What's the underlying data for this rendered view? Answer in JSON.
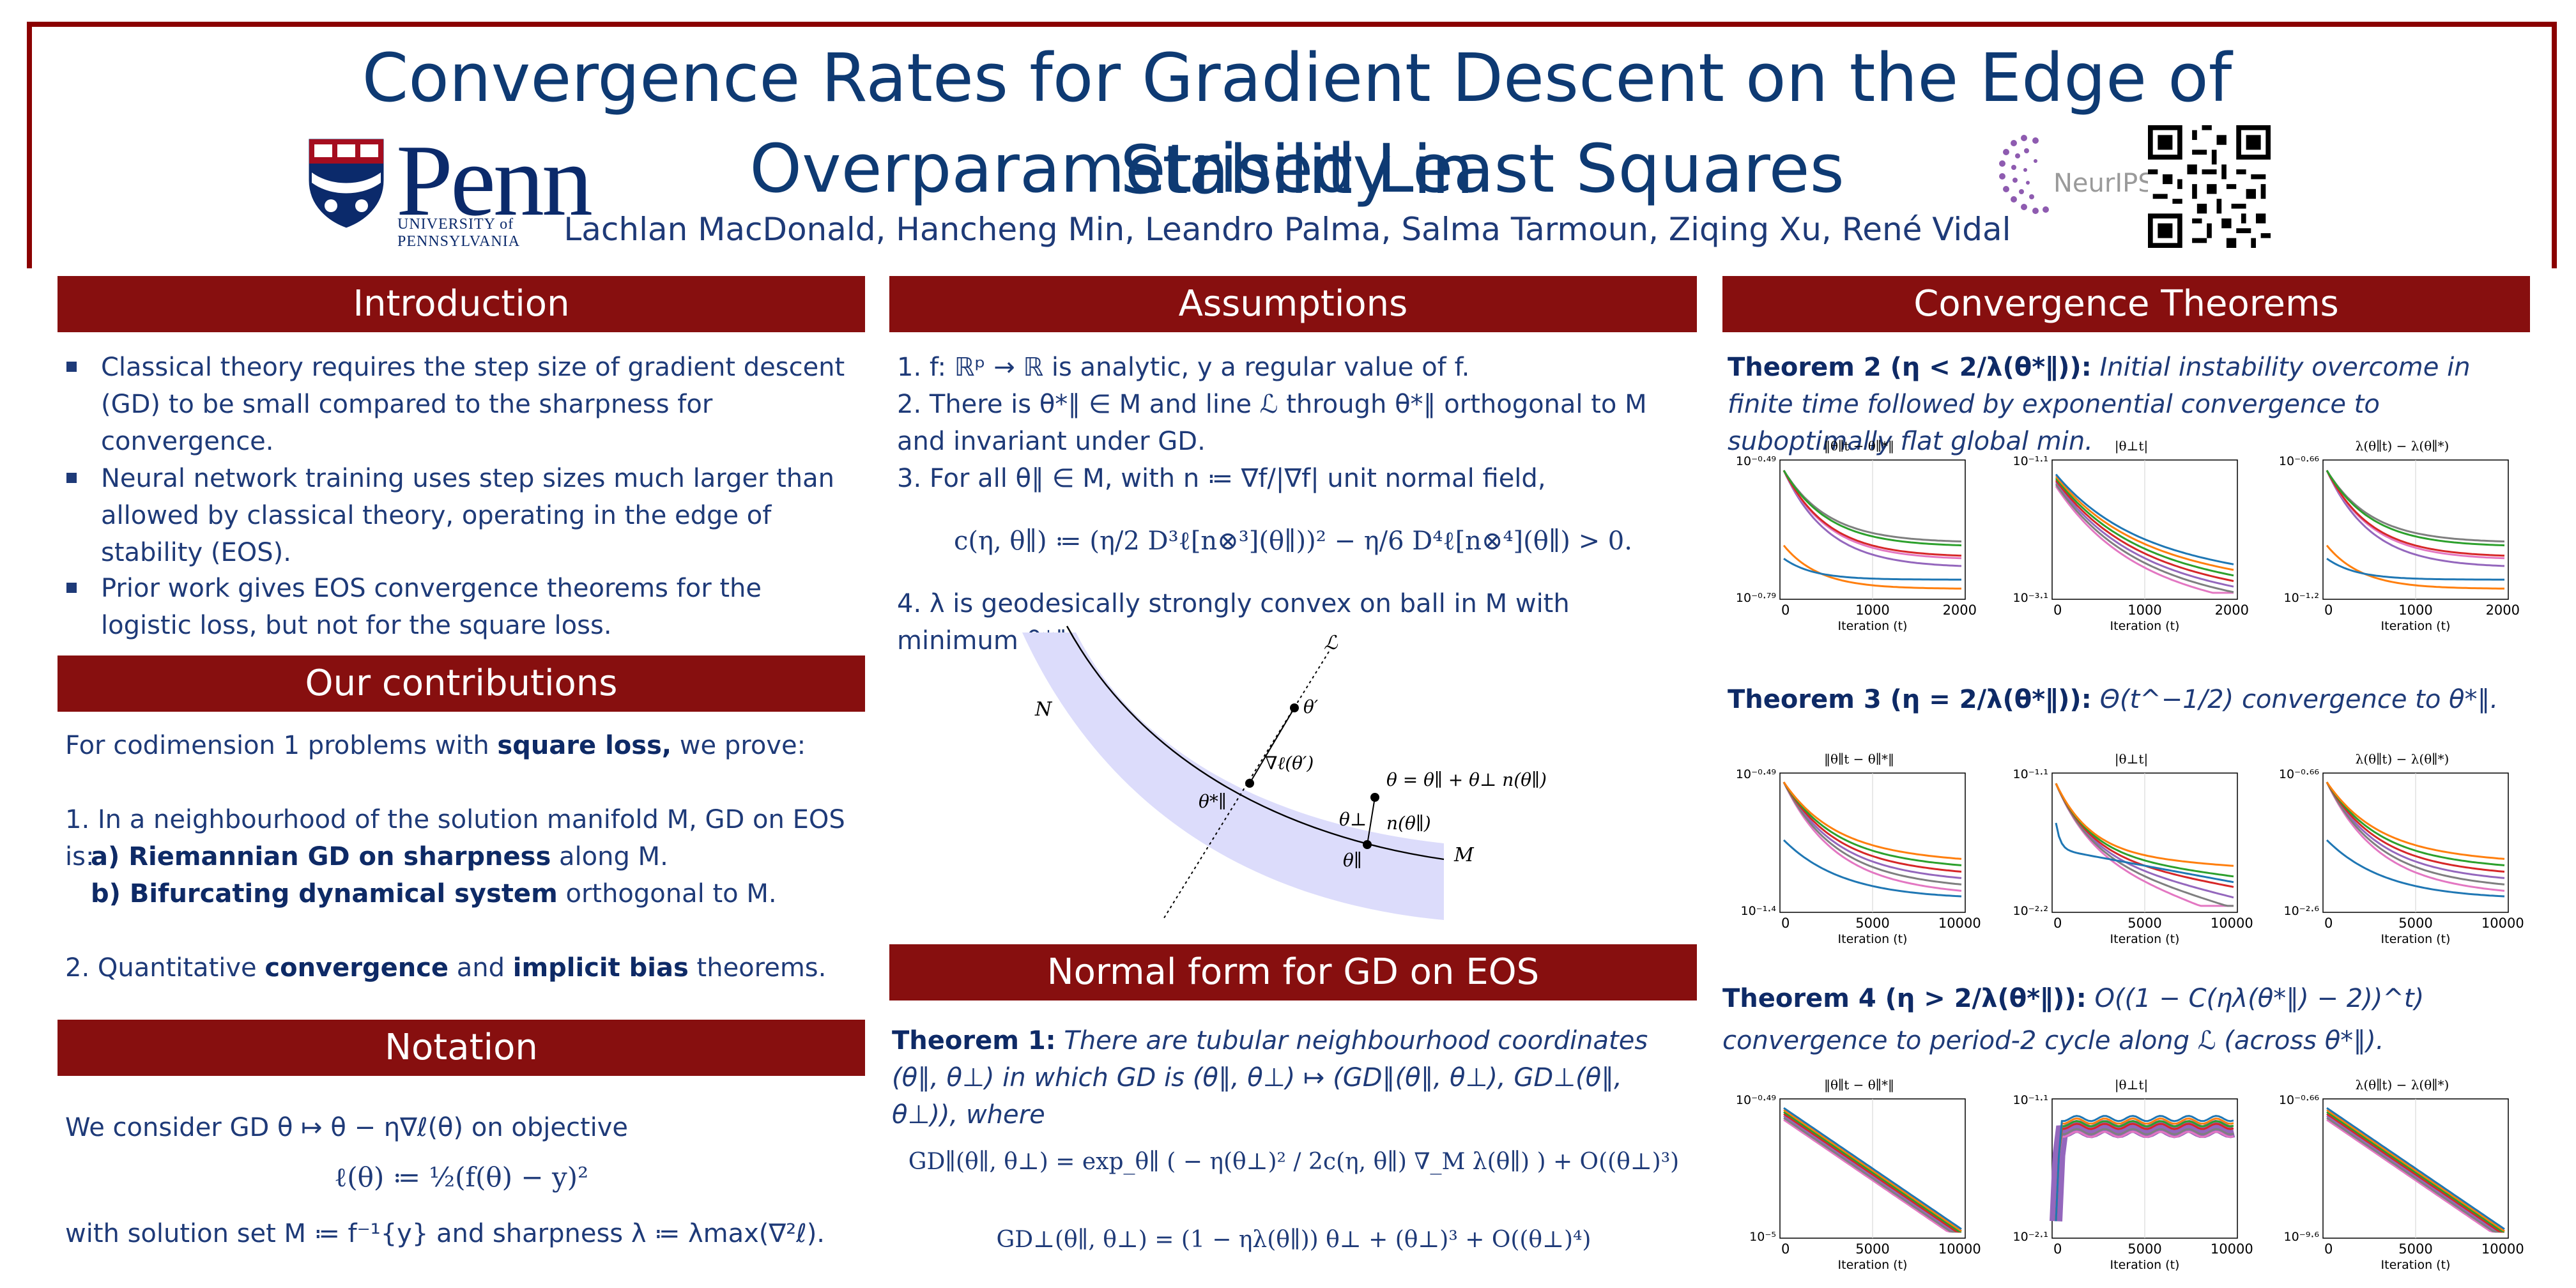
{
  "header": {
    "title_line1": "Convergence Rates for Gradient Descent on the Edge of Stability in",
    "title_line2": "Overparametrised Least Squares",
    "authors": "Lachlan MacDonald, Hancheng Min, Leandro Palma, Salma Tarmoun, Ziqing Xu, René Vidal",
    "penn_word": "Penn",
    "penn_sub": "UNIVERSITY of PENNSYLVANIA",
    "neurips": "NeurIPS"
  },
  "sections": {
    "introduction": "Introduction",
    "contributions": "Our contributions",
    "notation": "Notation",
    "assumptions": "Assumptions",
    "normal_form": "Normal form for GD on EOS",
    "convergence": "Convergence Theorems"
  },
  "introduction": {
    "b1": "Classical theory requires the step size of gradient descent (GD) to be small compared to the sharpness for convergence.",
    "b2": "Neural network training uses step sizes much larger than allowed by classical theory, operating in the edge of stability (EOS).",
    "b3": "Prior work gives EOS convergence theorems for the logistic loss, but not for the square loss."
  },
  "contributions": {
    "intro_a": "For codimension 1 problems with ",
    "intro_b": "square loss,",
    "intro_c": " we prove:",
    "item1": "1.  In a neighbourhood of the solution manifold M, GD on EOS is:",
    "item1a_b": "a)  Riemannian GD on sharpness",
    "item1a_t": " along M.",
    "item1b_b": "b)  Bifurcating dynamical system",
    "item1b_t": " orthogonal to M.",
    "item2_a": "2.  Quantitative ",
    "item2_b": "convergence",
    "item2_c": " and ",
    "item2_d": "implicit bias",
    "item2_e": " theorems."
  },
  "notation": {
    "line1": "We consider GD θ ↦ θ − η∇ℓ(θ) on objective",
    "formula": "ℓ(θ) ≔ ½(f(θ) − y)²",
    "line2": "with solution set M ≔ f⁻¹{y} and sharpness λ ≔ λmax(∇²ℓ)."
  },
  "assumptions": {
    "a1": "1.  f: ℝᵖ → ℝ is analytic, y a regular value of f.",
    "a2": "2.  There is θ*∥ ∈ M and line ℒ through θ*∥ orthogonal to M and invariant under GD.",
    "a3": "3.  For all θ∥ ∈ M, with n ≔ ∇f/|∇f| unit normal field,",
    "a3_formula": "c(η, θ∥) ≔ (η/2 D³ℓ[n⊗³](θ∥))² − η/6 D⁴ℓ[n⊗⁴](θ∥) > 0.",
    "a4": "4.  λ is geodesically strongly convex on ball in M with minimum θ*∥."
  },
  "diagram": {
    "L": "ℒ",
    "N": "N",
    "M": "M",
    "theta_prime": "θ′",
    "grad": "∇ℓ(θ′)",
    "theta_star": "θ*∥",
    "theta_eq": "θ = θ∥ + θ⊥ n(θ∥)",
    "theta_perp": "θ⊥",
    "n_theta": "n(θ∥)",
    "theta_par": "θ∥"
  },
  "normal_form": {
    "thm1_label": "Theorem 1:",
    "thm1_text": "There are tubular neighbourhood coordinates (θ∥, θ⊥) in which GD is (θ∥, θ⊥) ↦ (GD∥(θ∥, θ⊥), GD⊥(θ∥, θ⊥)), where",
    "eq1": "GD∥(θ∥, θ⊥) = exp_θ∥ ( − η(θ⊥)² / 2c(η, θ∥) ∇_M λ(θ∥) ) + O((θ⊥)³)",
    "eq2": "GD⊥(θ∥, θ⊥) = (1 − ηλ(θ∥)) θ⊥ + (θ⊥)³ + O((θ⊥)⁴)"
  },
  "theorems": {
    "t2_label": "Theorem 2 (η < 2/λ(θ*∥)):",
    "t2_text": "Initial instability overcome in finite time followed by exponential convergence to suboptimally flat global min.",
    "t3_label": "Theorem 3 (η = 2/λ(θ*∥)):",
    "t3_text": "Θ(t^−1/2) convergence to θ*∥.",
    "t4_label": "Theorem 4 (η > 2/λ(θ*∥)):",
    "t4_text": "O((1 − C(ηλ(θ*∥) − 2))^t) convergence to period-2 cycle along ℒ (across θ*∥)."
  },
  "plots": {
    "xname": "Iteration (t)",
    "titles": [
      "‖θ∥t − θ∥*‖",
      "|θ⊥t|",
      "λ(θ∥t) − λ(θ∥*)"
    ],
    "row1": {
      "x_ticks": [
        "0",
        "1000",
        "2000"
      ],
      "y": [
        [
          "10⁻⁰·⁴⁹",
          "10⁻⁰·⁷⁹"
        ],
        [
          "10⁻¹·¹",
          "10⁻³·¹"
        ],
        [
          "10⁻⁰·⁶⁶",
          "10⁻¹·²"
        ]
      ]
    },
    "row2": {
      "x_ticks": [
        "0",
        "5000",
        "10000"
      ],
      "y": [
        [
          "10⁻⁰·⁴⁹",
          "10⁻¹·⁴"
        ],
        [
          "10⁻¹·¹",
          "10⁻²·²"
        ],
        [
          "10⁻⁰·⁶⁶",
          "10⁻²·⁶"
        ]
      ]
    },
    "row3": {
      "x_ticks": [
        "0",
        "5000",
        "10000"
      ],
      "y": [
        [
          "10⁻⁰·⁴⁹",
          "10⁻⁵"
        ],
        [
          "10⁻¹·¹",
          "10⁻²·¹"
        ],
        [
          "10⁻⁰·⁶⁶",
          "10⁻⁹·⁶"
        ]
      ]
    },
    "colors": [
      "#1f77b4",
      "#ff7f0e",
      "#2ca02c",
      "#d62728",
      "#9467bd",
      "#7f7f7f",
      "#e377c2"
    ]
  }
}
